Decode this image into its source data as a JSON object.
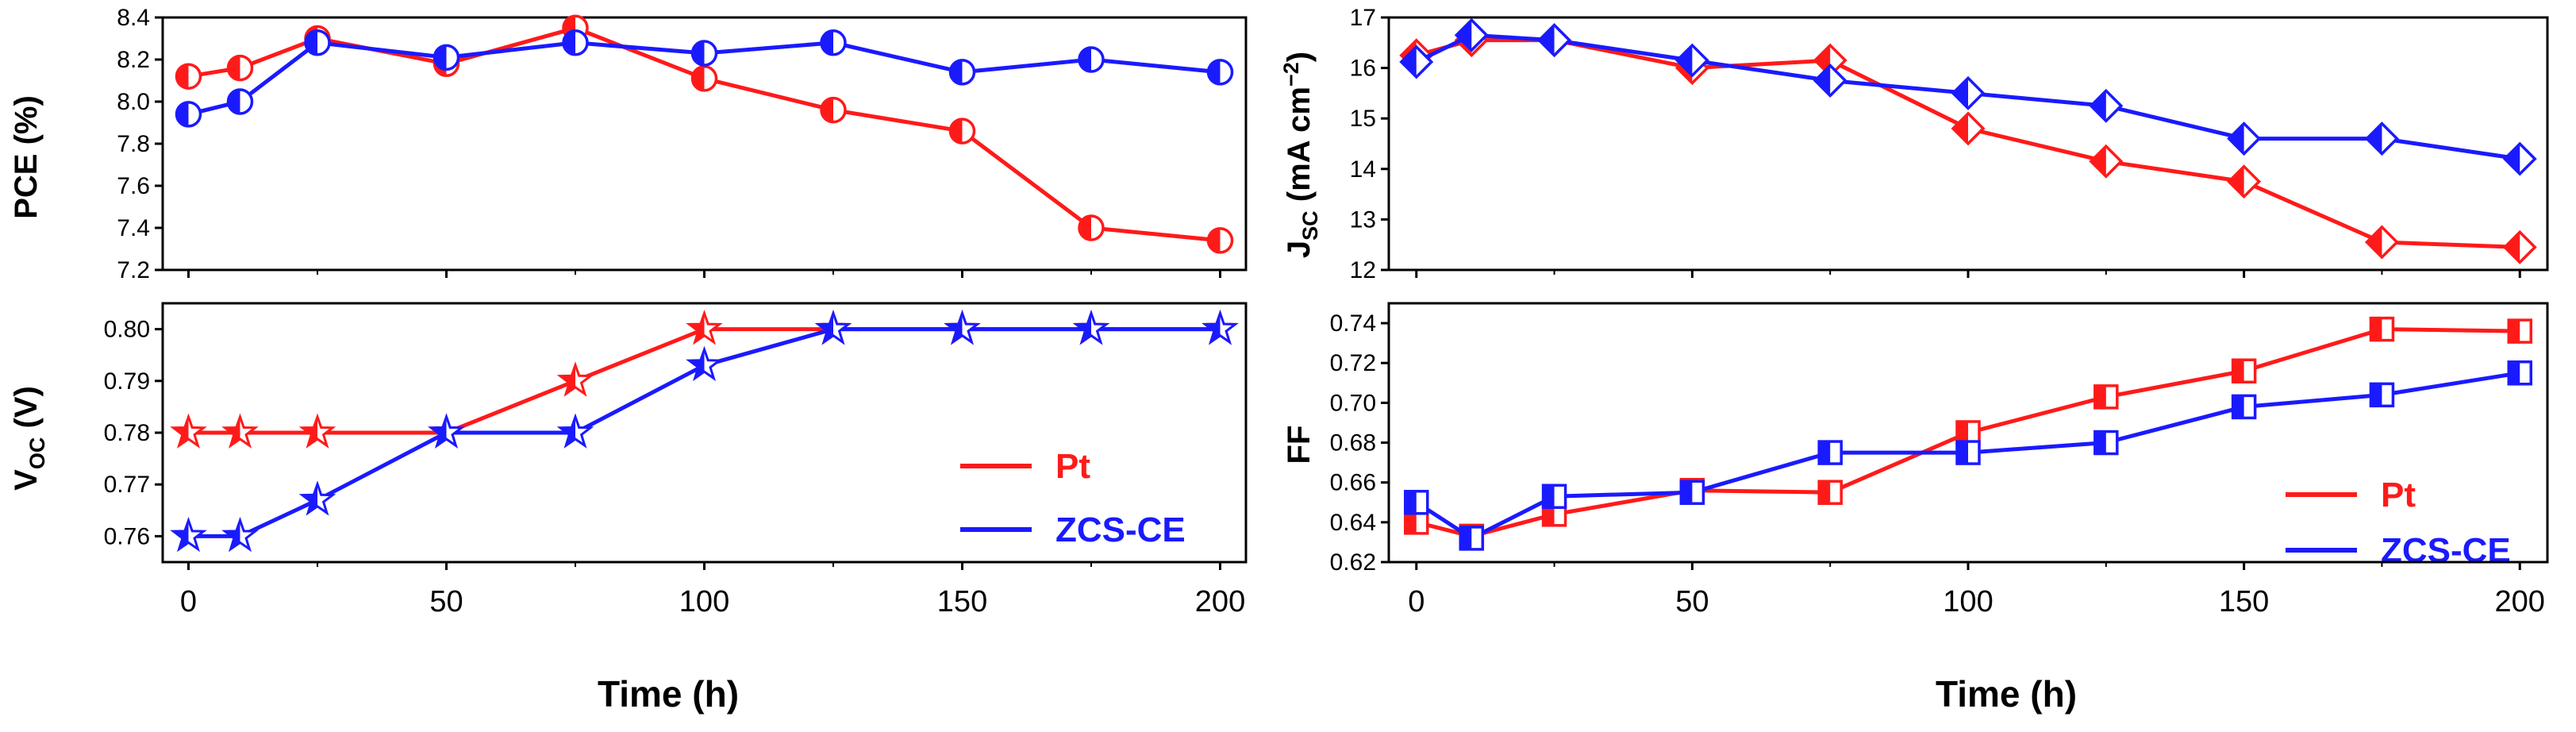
{
  "colors": {
    "pt": "#ff1a1a",
    "zcs": "#1a1aff",
    "axis": "#000000"
  },
  "chart_data": [
    {
      "type": "line",
      "panel": "top-left",
      "xlabel": "",
      "ylabel": "PCE (%)",
      "ylim": [
        7.2,
        8.4
      ],
      "yticks": [
        "7.2",
        "7.4",
        "7.6",
        "7.8",
        "8.0",
        "8.2",
        "8.4"
      ],
      "xlim": [
        -5,
        205
      ],
      "marker": "circle",
      "series": [
        {
          "name": "Pt",
          "x": [
            0,
            10,
            25,
            50,
            75,
            100,
            125,
            150,
            175,
            200
          ],
          "values": [
            8.12,
            8.16,
            8.3,
            8.18,
            8.35,
            8.11,
            7.96,
            7.86,
            7.4,
            7.34
          ]
        },
        {
          "name": "ZCS-CE",
          "x": [
            0,
            10,
            25,
            50,
            75,
            100,
            125,
            150,
            175,
            200
          ],
          "values": [
            7.94,
            8.0,
            8.28,
            8.21,
            8.28,
            8.23,
            8.28,
            8.14,
            8.2,
            8.14
          ]
        }
      ]
    },
    {
      "type": "line",
      "panel": "bottom-left",
      "xlabel": "Time (h)",
      "ylabel": "V_OC (V)",
      "ylim": [
        0.755,
        0.805
      ],
      "yticks": [
        "0.76",
        "0.77",
        "0.78",
        "0.79",
        "0.80"
      ],
      "xlim": [
        -5,
        205
      ],
      "xticks": [
        "0",
        "50",
        "100",
        "150",
        "200"
      ],
      "marker": "star",
      "legend": "right",
      "series": [
        {
          "name": "Pt",
          "x": [
            0,
            10,
            25,
            50,
            75,
            100,
            125,
            150,
            175,
            200
          ],
          "values": [
            0.78,
            0.78,
            0.78,
            0.78,
            0.79,
            0.8,
            0.8,
            0.8,
            0.8,
            0.8
          ]
        },
        {
          "name": "ZCS-CE",
          "x": [
            0,
            10,
            25,
            50,
            75,
            100,
            125,
            150,
            175,
            200
          ],
          "values": [
            0.76,
            0.76,
            0.767,
            0.78,
            0.78,
            0.793,
            0.8,
            0.8,
            0.8,
            0.8
          ]
        }
      ]
    },
    {
      "type": "line",
      "panel": "top-right",
      "xlabel": "",
      "ylabel": "J_SC (mA cm^-2)",
      "ylim": [
        12,
        17
      ],
      "yticks": [
        "12",
        "13",
        "14",
        "15",
        "16",
        "17"
      ],
      "xlim": [
        -5,
        205
      ],
      "marker": "diamond",
      "series": [
        {
          "name": "Pt",
          "x": [
            0,
            10,
            25,
            50,
            75,
            100,
            125,
            150,
            175,
            200
          ],
          "values": [
            16.25,
            16.55,
            16.55,
            16.0,
            16.15,
            14.8,
            14.15,
            13.75,
            12.55,
            12.45
          ]
        },
        {
          "name": "ZCS-CE",
          "x": [
            0,
            10,
            25,
            50,
            75,
            100,
            125,
            150,
            175,
            200
          ],
          "values": [
            16.12,
            16.65,
            16.55,
            16.15,
            15.75,
            15.5,
            15.25,
            14.6,
            14.6,
            14.2
          ]
        }
      ]
    },
    {
      "type": "line",
      "panel": "bottom-right",
      "xlabel": "Time (h)",
      "ylabel": "FF",
      "ylim": [
        0.62,
        0.75
      ],
      "yticks": [
        "0.62",
        "0.64",
        "0.66",
        "0.68",
        "0.70",
        "0.72",
        "0.74"
      ],
      "xlim": [
        -5,
        205
      ],
      "xticks": [
        "0",
        "50",
        "100",
        "150",
        "200"
      ],
      "marker": "square",
      "legend": "right",
      "series": [
        {
          "name": "Pt",
          "x": [
            0,
            10,
            25,
            50,
            75,
            100,
            125,
            150,
            175,
            200
          ],
          "values": [
            0.64,
            0.633,
            0.644,
            0.656,
            0.655,
            0.685,
            0.703,
            0.716,
            0.737,
            0.736
          ]
        },
        {
          "name": "ZCS-CE",
          "x": [
            0,
            10,
            25,
            50,
            75,
            100,
            125,
            150,
            175,
            200
          ],
          "values": [
            0.65,
            0.632,
            0.653,
            0.655,
            0.675,
            0.675,
            0.68,
            0.698,
            0.704,
            0.715
          ]
        }
      ]
    }
  ],
  "legend": {
    "pt_label": "Pt",
    "zcs_label": "ZCS-CE"
  },
  "labels": {
    "pce": "PCE (%)",
    "voc_main": "V",
    "voc_sub": "OC",
    "voc_tail": " (V)",
    "jsc_main": "J",
    "jsc_sub": "SC",
    "jsc_tail": " (mA cm",
    "jsc_sup": "−2",
    "jsc_end": ")",
    "ff": "FF",
    "time_left": "Time (h)",
    "time_right": "Time (h)"
  }
}
